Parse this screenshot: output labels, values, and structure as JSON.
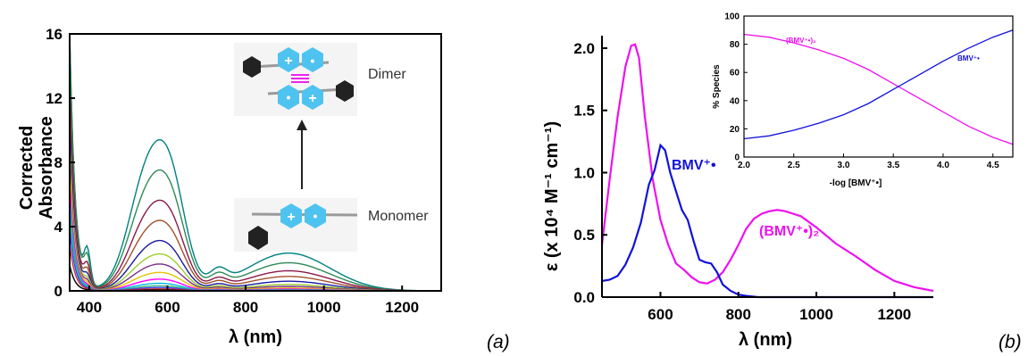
{
  "panel_a": {
    "panel_label": "(a)",
    "ylabel_line1": "Corrected",
    "ylabel_line2": "Absorbance",
    "xlabel": "λ (nm)",
    "x_ticks": [
      "400",
      "600",
      "800",
      "1000",
      "1200"
    ],
    "y_ticks": [
      "0",
      "4",
      "8",
      "12",
      "16"
    ],
    "diagram": {
      "dimer_label": "Dimer",
      "monomer_label": "Monomer",
      "plus_symbol": "+",
      "radical_symbol": "•"
    }
  },
  "panel_b": {
    "panel_label": "(b)",
    "ylabel": "ε (x 10⁴ M⁻¹ cm⁻¹)",
    "xlabel": "λ (nm)",
    "x_ticks": [
      "600",
      "800",
      "1000",
      "1200"
    ],
    "y_ticks": [
      "0.0",
      "0.5",
      "1.0",
      "1.5",
      "2.0"
    ],
    "series_labels": {
      "monomer": "BMV⁺•",
      "dimer": "(BMV⁺•)₂"
    },
    "inset": {
      "ylabel": "% Species",
      "xlabel": "-log [BMV⁺•]",
      "x_ticks": [
        "2.0",
        "2.5",
        "3.0",
        "3.5",
        "4.0",
        "4.5"
      ],
      "y_ticks": [
        "0",
        "20",
        "40",
        "60",
        "80",
        "100"
      ],
      "series_labels": {
        "dimer": "(BMV⁺•)₂",
        "monomer": "BMV⁺•"
      }
    }
  },
  "colors": {
    "magenta": "#ee11ee",
    "blue": "#1111dd",
    "hexagon_cyan": "#4fc3ef",
    "hexagon_dark": "#222222",
    "dimer_bond": "#ee22ee"
  },
  "chart_data": [
    {
      "type": "line",
      "title": "",
      "xlabel": "λ (nm)",
      "ylabel": "Corrected Absorbance",
      "xlim": [
        350,
        1300
      ],
      "ylim": [
        0,
        16
      ],
      "grid": false,
      "legend": "none",
      "series": [
        {
          "color": "#008080",
          "peaks": {
            "uv_350": 16,
            "vis_550": 9.0,
            "nir_910": 2.35
          }
        },
        {
          "color": "#2e8b57",
          "peaks": {
            "uv_350": 16,
            "vis_550": 7.2,
            "nir_910": 1.75
          }
        },
        {
          "color": "#8b1a4a",
          "peaks": {
            "uv_350": 13.1,
            "vis_550": 5.4,
            "nir_910": 1.25
          }
        },
        {
          "color": "#a0522d",
          "peaks": {
            "uv_350": 11.6,
            "vis_550": 4.2,
            "nir_910": 0.9
          }
        },
        {
          "color": "#1a1aa0",
          "peaks": {
            "uv_350": 10.5,
            "vis_550": 3.0,
            "nir_910": 0.6
          }
        },
        {
          "color": "#9acd32",
          "peaks": {
            "uv_350": 9.3,
            "vis_550": 2.2,
            "nir_910": 0.4
          }
        },
        {
          "color": "#7b2f8b",
          "peaks": {
            "uv_350": 8.5,
            "vis_550": 1.6,
            "nir_910": 0.28
          }
        },
        {
          "color": "#e6c400",
          "peaks": {
            "uv_350": 7.7,
            "vis_550": 1.1,
            "nir_910": 0.18
          }
        },
        {
          "color": "#ff00ff",
          "peaks": {
            "uv_350": 6.7,
            "vis_550": 0.7,
            "nir_910": 0.11
          }
        },
        {
          "color": "#00b7eb",
          "peaks": {
            "uv_350": 5.8,
            "vis_550": 0.45,
            "nir_910": 0.07
          }
        },
        {
          "color": "#3cb371",
          "peaks": {
            "uv_350": 4.9,
            "vis_550": 0.3,
            "nir_910": 0.05
          }
        },
        {
          "color": "#4040ff",
          "peaks": {
            "uv_350": 3.9,
            "vis_550": 0.2,
            "nir_910": 0.03
          }
        },
        {
          "color": "#cc3333",
          "peaks": {
            "uv_350": 2.9,
            "vis_550": 0.12,
            "nir_910": 0.02
          }
        },
        {
          "color": "#000000",
          "peaks": {
            "uv_350": 1.6,
            "vis_550": 0.05,
            "nir_910": 0.01
          }
        }
      ]
    },
    {
      "type": "line",
      "title": "",
      "xlabel": "λ (nm)",
      "ylabel": "ε (x 10⁴ M⁻¹ cm⁻¹)",
      "xlim": [
        450,
        1300
      ],
      "ylim": [
        0,
        2.1
      ],
      "grid": false,
      "legend": "inline labels",
      "series": [
        {
          "name": "(BMV⁺•)₂",
          "color": "#ee11ee",
          "x": [
            450,
            470,
            490,
            510,
            525,
            535,
            545,
            560,
            580,
            600,
            620,
            640,
            660,
            680,
            700,
            720,
            740,
            760,
            780,
            800,
            820,
            840,
            860,
            880,
            900,
            920,
            940,
            960,
            1000,
            1050,
            1100,
            1150,
            1200,
            1250,
            1300
          ],
          "y": [
            0.42,
            0.95,
            1.45,
            1.85,
            2.02,
            2.03,
            1.92,
            1.45,
            0.95,
            0.62,
            0.42,
            0.27,
            0.22,
            0.16,
            0.12,
            0.11,
            0.14,
            0.2,
            0.3,
            0.42,
            0.55,
            0.63,
            0.67,
            0.69,
            0.7,
            0.69,
            0.67,
            0.65,
            0.56,
            0.43,
            0.33,
            0.22,
            0.13,
            0.08,
            0.05
          ]
        },
        {
          "name": "BMV⁺•",
          "color": "#1111dd",
          "x": [
            450,
            470,
            490,
            510,
            530,
            550,
            570,
            585,
            600,
            612,
            625,
            640,
            655,
            670,
            685,
            700,
            715,
            730,
            745,
            760,
            780,
            800,
            820,
            850,
            900,
            1000,
            1100,
            1200,
            1300
          ],
          "y": [
            0.13,
            0.14,
            0.17,
            0.26,
            0.4,
            0.6,
            0.9,
            1.02,
            1.22,
            1.18,
            1.0,
            0.85,
            0.7,
            0.62,
            0.45,
            0.3,
            0.28,
            0.27,
            0.2,
            0.1,
            0.05,
            0.02,
            0.01,
            0.0,
            0.0,
            0.0,
            0.0,
            0.0,
            0.0
          ]
        }
      ]
    },
    {
      "type": "line",
      "title": "",
      "xlabel": "-log [BMV⁺•]",
      "ylabel": "% Species",
      "xlim": [
        2.0,
        4.7
      ],
      "ylim": [
        0,
        100
      ],
      "grid": false,
      "legend": "inline labels",
      "series": [
        {
          "name": "(BMV⁺•)₂",
          "color": "#ee11ee",
          "x": [
            2.0,
            2.25,
            2.5,
            2.75,
            3.0,
            3.25,
            3.5,
            3.75,
            4.0,
            4.25,
            4.5,
            4.7
          ],
          "y": [
            87,
            85,
            81,
            76,
            70,
            62,
            52,
            42,
            32,
            22,
            14,
            9
          ]
        },
        {
          "name": "BMV⁺•",
          "color": "#1111dd",
          "x": [
            2.0,
            2.25,
            2.5,
            2.75,
            3.0,
            3.25,
            3.5,
            3.75,
            4.0,
            4.25,
            4.5,
            4.7
          ],
          "y": [
            13,
            15,
            19,
            24,
            30,
            38,
            48,
            58,
            68,
            77,
            85,
            90
          ]
        }
      ]
    }
  ]
}
